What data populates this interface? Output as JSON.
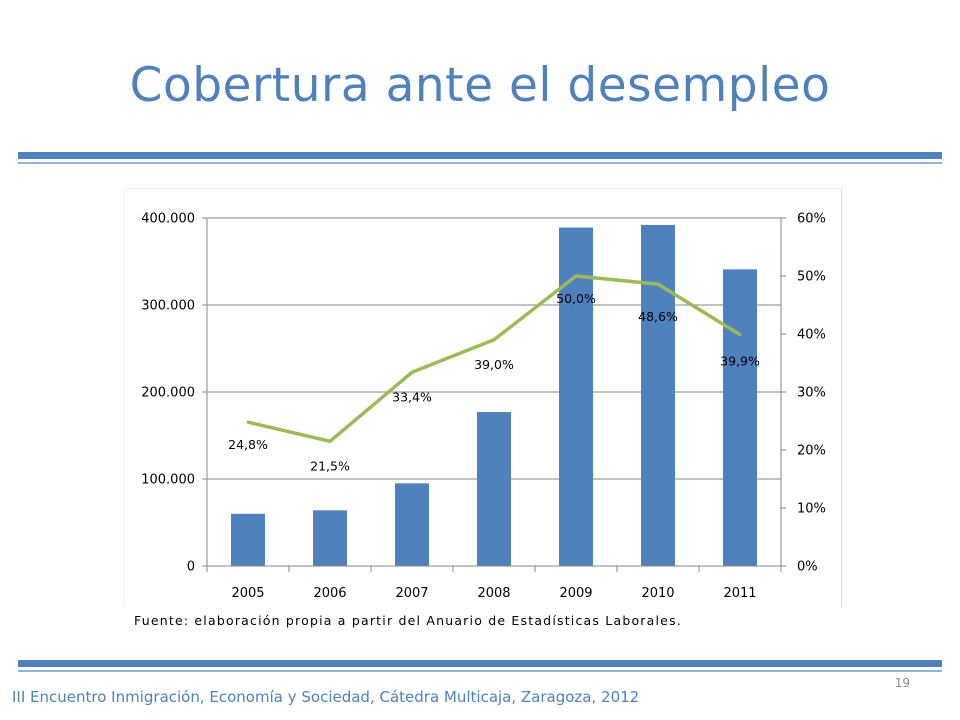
{
  "slide": {
    "title": "Cobertura ante el desempleo",
    "source": "Fuente: elaboración propia a partir del Anuario de Estadísticas Laborales.",
    "footer": "III Encuentro Inmigración, Economía y Sociedad, Cátedra Multicaja, Zaragoza, 2012",
    "page_number": "19"
  },
  "colors": {
    "accent": "#4f81bd",
    "bar": "#4f81bd",
    "line": "#9bbb59"
  },
  "chart_data": {
    "type": "bar",
    "categories": [
      "2005",
      "2006",
      "2007",
      "2008",
      "2009",
      "2010",
      "2011"
    ],
    "series": [
      {
        "type": "bar",
        "axis": "left",
        "values": [
          60000,
          64000,
          95000,
          177000,
          389000,
          392000,
          341000
        ]
      },
      {
        "type": "line",
        "axis": "right",
        "values": [
          24.8,
          21.5,
          33.4,
          39.0,
          50.0,
          48.6,
          39.9
        ],
        "labels": [
          "24,8%",
          "21,5%",
          "33,4%",
          "39,0%",
          "50,0%",
          "48,6%",
          "39,9%"
        ]
      }
    ],
    "y_left": {
      "ylim": [
        0,
        400000
      ],
      "ticks": [
        "0",
        "100.000",
        "200.000",
        "300.000",
        "400.000"
      ]
    },
    "y_right": {
      "ylim": [
        0,
        60
      ],
      "ticks": [
        "0%",
        "10%",
        "20%",
        "30%",
        "40%",
        "50%",
        "60%"
      ]
    },
    "grid": true,
    "legend": "none"
  }
}
